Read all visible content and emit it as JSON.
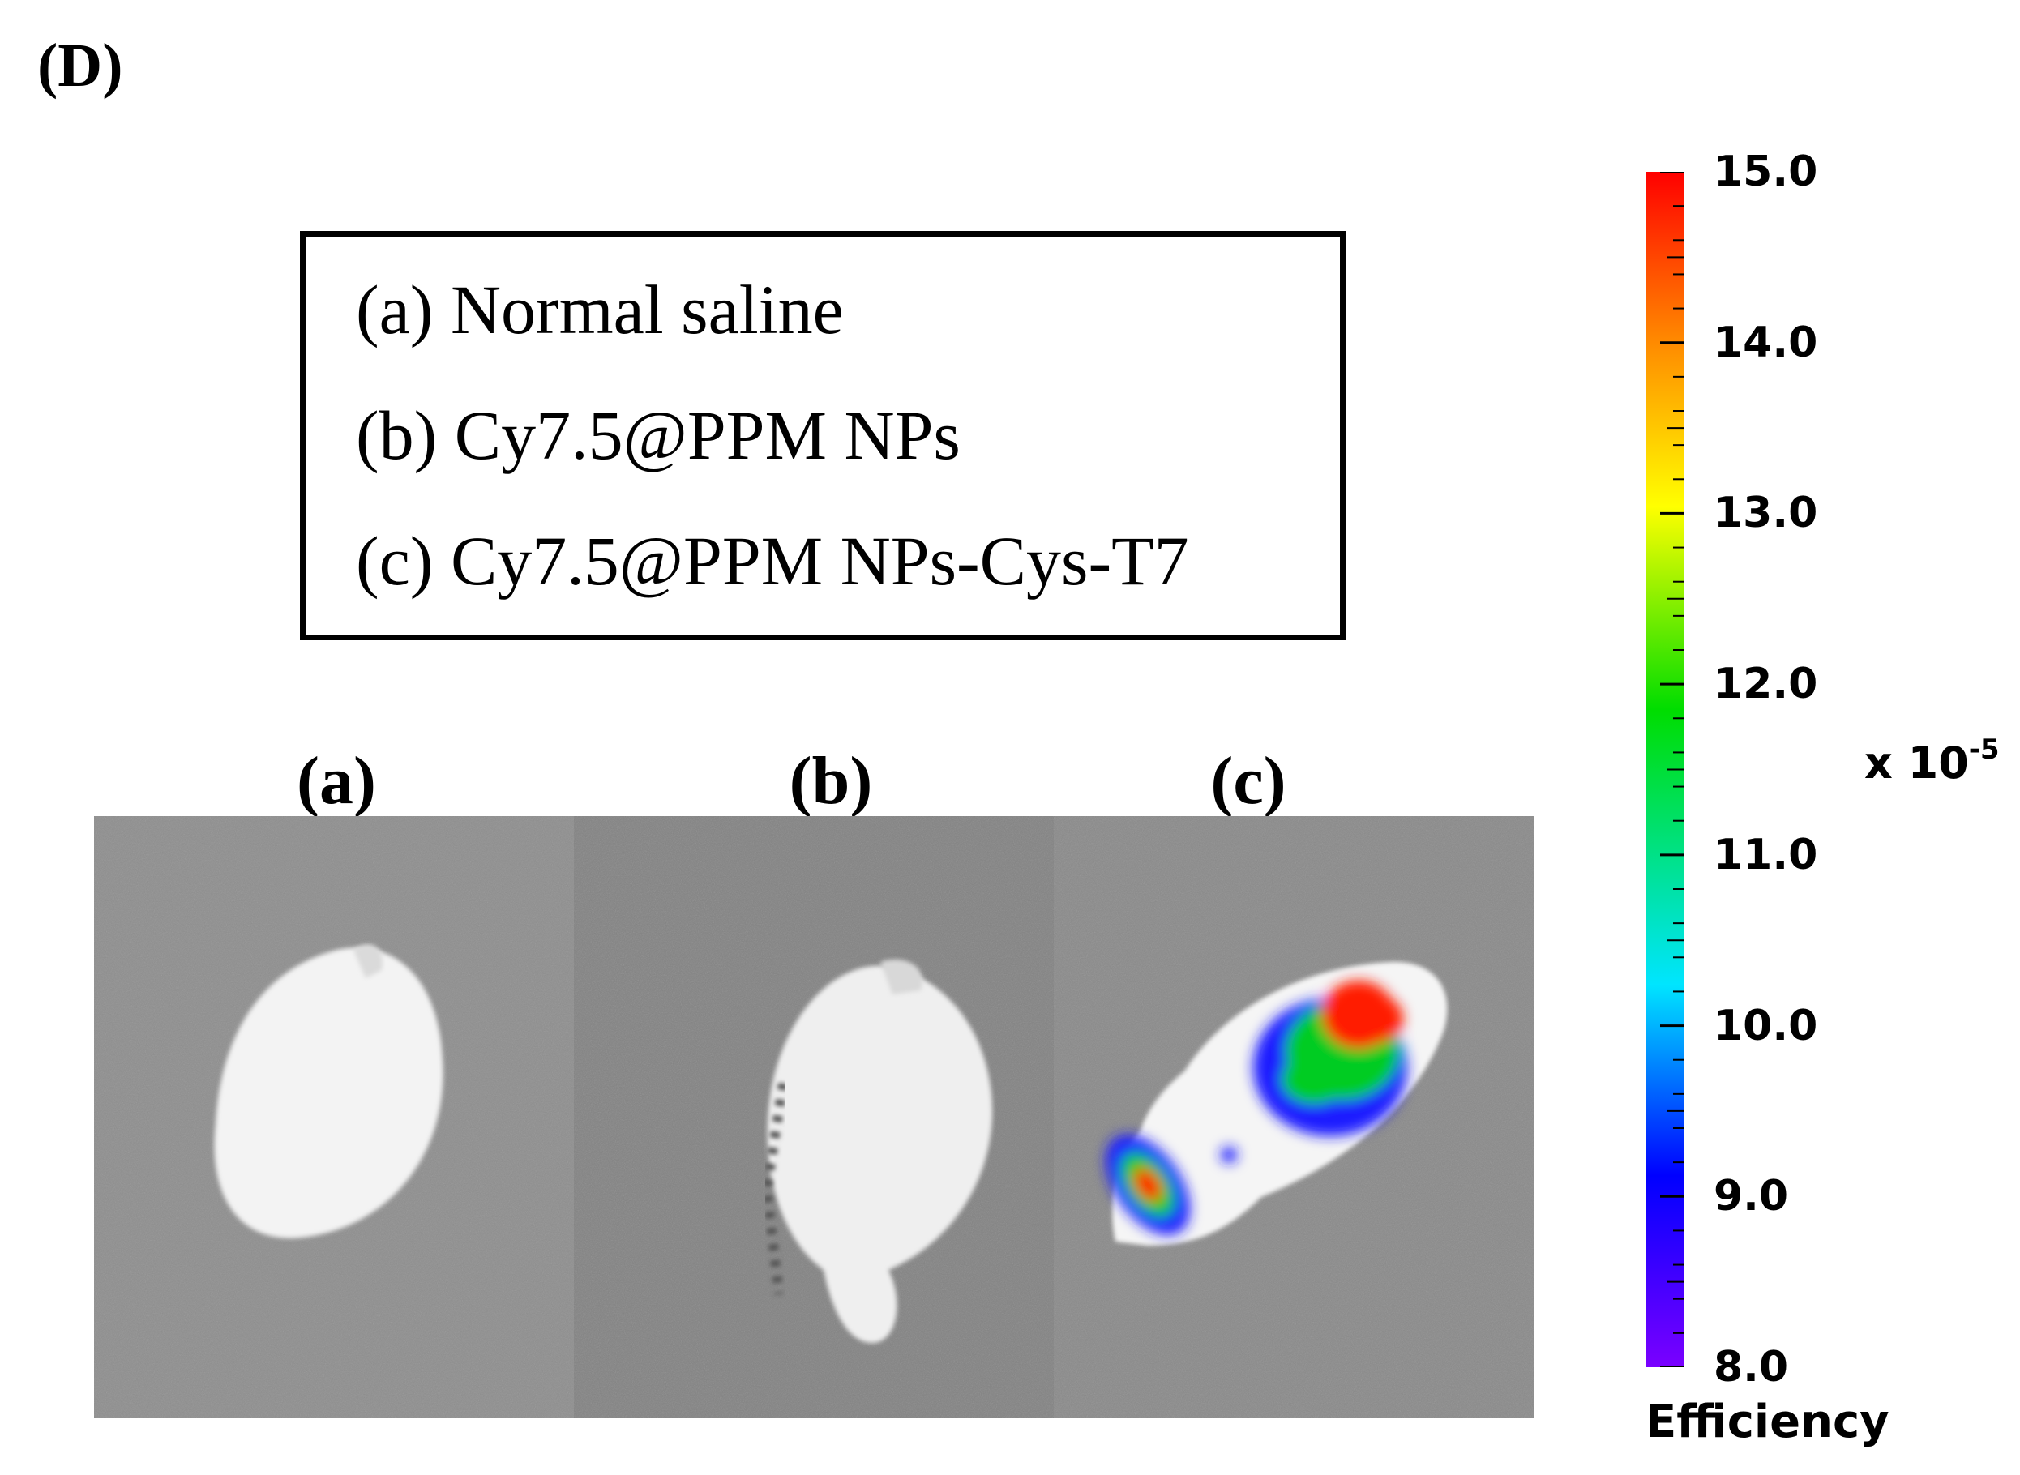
{
  "panel_label": "(D)",
  "legend": {
    "items": [
      "(a) Normal saline",
      "(b) Cy7.5@PPM NPs",
      "(c) Cy7.5@PPM NPs-Cys-T7"
    ]
  },
  "samples": [
    {
      "label": "(a)",
      "signal": "none"
    },
    {
      "label": "(b)",
      "signal": "none"
    },
    {
      "label": "(c)",
      "signal": "high"
    }
  ],
  "colorbar": {
    "title": "Efficiency",
    "exponent_base": "x 10",
    "exponent_power": "-5",
    "tick_labels": [
      "15.0",
      "14.0",
      "13.0",
      "12.0",
      "11.0",
      "10.0",
      "9.0",
      "8.0"
    ],
    "range": [
      8.0,
      15.0
    ],
    "colormap": [
      "#7a00ff",
      "#0000ff",
      "#00e5ff",
      "#00dd00",
      "#ffff00",
      "#ff8800",
      "#ff0000"
    ]
  }
}
